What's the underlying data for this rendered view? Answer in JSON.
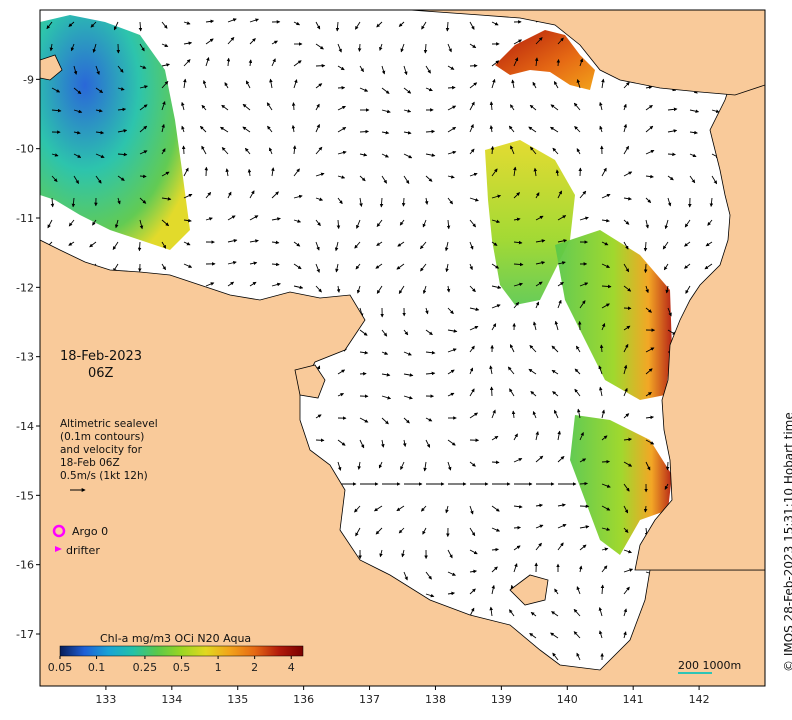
{
  "map": {
    "title": "",
    "date": "18-Feb-2023",
    "hour": "06Z",
    "legend_lines": [
      "Altimetric sealevel",
      "(0.1m contours)",
      "and velocity for",
      "18-Feb 06Z",
      "0.5m/s (1kt 12h)"
    ],
    "argo_label": "Argo 0",
    "drifter_label": "drifter",
    "colorbar_title": "Chl-a mg/m3 OCi N20 Aqua",
    "colorbar_ticks": [
      "0.05",
      "0.1",
      "0.25",
      "0.5",
      "1",
      "2",
      "4"
    ],
    "colorbar_tick_values": [
      0.05,
      0.1,
      0.25,
      0.5,
      1,
      2,
      4
    ],
    "colorbar_range": [
      0.05,
      5
    ],
    "colorbar_scale": "log",
    "scalebar_label": "200  1000m",
    "credit": "© IMOS 28-Feb-2023 15:31:10 Hobart time",
    "x_ticks": [
      "133",
      "134",
      "135",
      "136",
      "137",
      "138",
      "139",
      "140",
      "141",
      "142"
    ],
    "x_tick_values": [
      133,
      134,
      135,
      136,
      137,
      138,
      139,
      140,
      141,
      142
    ],
    "y_ticks": [
      "-9",
      "-10",
      "-11",
      "-12",
      "-13",
      "-14",
      "-15",
      "-16",
      "-17"
    ],
    "y_tick_values": [
      -9,
      -10,
      -11,
      -12,
      -13,
      -14,
      -15,
      -16,
      -17
    ],
    "lon_range": [
      132.0,
      143.0
    ],
    "lat_range": [
      -17.75,
      -8.0
    ],
    "colors": {
      "land": "#f9ca9a",
      "ocean": "#ffffff",
      "arrow": "#000000",
      "argo": "#ff00ff",
      "drifter": "#ff00ff",
      "scalebar": "#2ec4b6"
    },
    "colormap": [
      "#081d58",
      "#1f5fd6",
      "#19a3d6",
      "#22c1a8",
      "#5ac84a",
      "#9bd623",
      "#e1d820",
      "#f2a21a",
      "#e66a14",
      "#b31b0b",
      "#7a0000"
    ]
  }
}
